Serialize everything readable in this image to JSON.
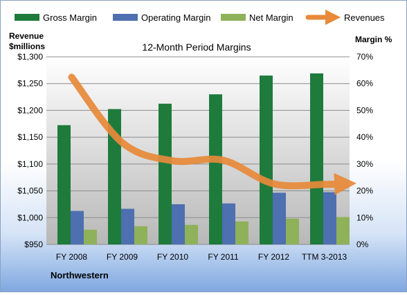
{
  "chart_data": {
    "type": "bar",
    "title": "12-Month Period Margins",
    "footer_label": "Northwestern",
    "categories": [
      "FY 2008",
      "FY 2009",
      "FY 2010",
      "FY 2011",
      "FY 2012",
      "TTM 3-2013"
    ],
    "y_left": {
      "label_line1": "Revenue",
      "label_line2": "$millions",
      "ylim": [
        950,
        1300
      ],
      "ticks": [
        950,
        1000,
        1050,
        1100,
        1150,
        1200,
        1250,
        1300
      ],
      "tick_labels": [
        "$950",
        "$1,000",
        "$1,050",
        "$1,100",
        "$1,150",
        "$1,200",
        "$1,250",
        "$1,300"
      ]
    },
    "y_right": {
      "label": "Margin %",
      "ylim": [
        0,
        70
      ],
      "ticks": [
        0,
        10,
        20,
        30,
        40,
        50,
        60,
        70
      ],
      "tick_labels": [
        "0%",
        "10%",
        "20%",
        "30%",
        "40%",
        "50%",
        "60%",
        "70%"
      ]
    },
    "series": [
      {
        "name": "Gross Margin",
        "axis": "right",
        "color": "#1e7b3c",
        "values": [
          44.5,
          50.5,
          52.5,
          56,
          63,
          63.8
        ]
      },
      {
        "name": "Operating Margin",
        "axis": "right",
        "color": "#4e6fb0",
        "values": [
          12.5,
          13.3,
          15,
          15.3,
          19.3,
          19.5
        ]
      },
      {
        "name": "Net Margin",
        "axis": "right",
        "color": "#8fb15a",
        "values": [
          5.5,
          6.8,
          7.3,
          8.6,
          9.6,
          10.2
        ]
      },
      {
        "name": "Revenues",
        "axis": "left",
        "type": "line",
        "color": "#e88a3a",
        "values": [
          1262,
          1140,
          1106,
          1107,
          1063,
          1062
        ]
      }
    ],
    "grid": true,
    "legend_position": "top"
  }
}
